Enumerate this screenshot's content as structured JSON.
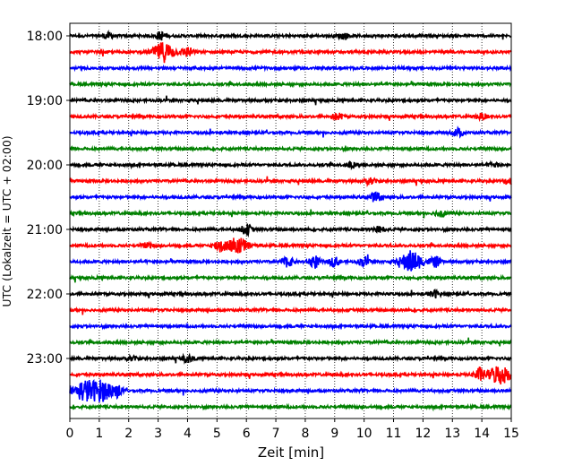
{
  "chart_data": {
    "type": "line",
    "title": "",
    "xlabel": "Zeit  [min]",
    "ylabel": "UTC (Lokalzeit = UTC + 02:00)",
    "xlim": [
      0,
      15
    ],
    "x_ticks": [
      "0",
      "1",
      "2",
      "3",
      "4",
      "5",
      "6",
      "7",
      "8",
      "9",
      "10",
      "11",
      "12",
      "13",
      "14",
      "15"
    ],
    "y_tick_labels": [
      "18:00",
      "19:00",
      "20:00",
      "21:00",
      "22:00",
      "23:00"
    ],
    "grid": "vertical dotted lines at each minute",
    "trace_interval_minutes": 15,
    "color_cycle": [
      "#000000",
      "#ff0000",
      "#0000ff",
      "#008000"
    ],
    "traces": [
      {
        "start": "18:00",
        "events": [
          {
            "t": 1.3,
            "amp": 0.25
          },
          {
            "t": 3.1,
            "amp": 0.35
          },
          {
            "t": 9.3,
            "amp": 0.25
          }
        ]
      },
      {
        "start": "18:15",
        "events": [
          {
            "t": 3.2,
            "amp": 0.9
          },
          {
            "t": 4.0,
            "amp": 0.45
          }
        ]
      },
      {
        "start": "18:30",
        "events": []
      },
      {
        "start": "18:45",
        "events": []
      },
      {
        "start": "19:00",
        "events": []
      },
      {
        "start": "19:15",
        "events": [
          {
            "t": 9.1,
            "amp": 0.3
          },
          {
            "t": 14.0,
            "amp": 0.25
          }
        ]
      },
      {
        "start": "19:30",
        "events": [
          {
            "t": 13.2,
            "amp": 0.35
          }
        ]
      },
      {
        "start": "19:45",
        "events": []
      },
      {
        "start": "20:00",
        "events": [
          {
            "t": 9.6,
            "amp": 0.25
          },
          {
            "t": 14.4,
            "amp": 0.2
          }
        ]
      },
      {
        "start": "20:15",
        "events": [
          {
            "t": 10.2,
            "amp": 0.3
          },
          {
            "t": 14.9,
            "amp": 0.3
          }
        ]
      },
      {
        "start": "20:30",
        "events": [
          {
            "t": 10.4,
            "amp": 0.45
          }
        ]
      },
      {
        "start": "20:45",
        "events": [
          {
            "t": 12.6,
            "amp": 0.3
          }
        ]
      },
      {
        "start": "21:00",
        "events": [
          {
            "t": 6.0,
            "amp": 0.45
          },
          {
            "t": 10.5,
            "amp": 0.25
          }
        ]
      },
      {
        "start": "21:15",
        "events": [
          {
            "t": 5.1,
            "amp": 0.6
          },
          {
            "t": 5.7,
            "amp": 0.75
          },
          {
            "t": 2.6,
            "amp": 0.2
          }
        ]
      },
      {
        "start": "21:30",
        "events": [
          {
            "t": 7.4,
            "amp": 0.45
          },
          {
            "t": 8.3,
            "amp": 0.6
          },
          {
            "t": 9.0,
            "amp": 0.4
          },
          {
            "t": 10.0,
            "amp": 0.4
          },
          {
            "t": 11.6,
            "amp": 1.0
          },
          {
            "t": 12.4,
            "amp": 0.5
          }
        ]
      },
      {
        "start": "21:45",
        "events": []
      },
      {
        "start": "22:00",
        "events": [
          {
            "t": 12.4,
            "amp": 0.3
          }
        ]
      },
      {
        "start": "22:15",
        "events": []
      },
      {
        "start": "22:30",
        "events": []
      },
      {
        "start": "22:45",
        "events": []
      },
      {
        "start": "23:00",
        "events": [
          {
            "t": 4.0,
            "amp": 0.35
          },
          {
            "t": 2.1,
            "amp": 0.2
          }
        ]
      },
      {
        "start": "23:15",
        "events": [
          {
            "t": 13.9,
            "amp": 0.6
          },
          {
            "t": 14.6,
            "amp": 0.9
          }
        ]
      },
      {
        "start": "23:30",
        "events": [
          {
            "t": 0.5,
            "amp": 0.95
          },
          {
            "t": 1.1,
            "amp": 0.9
          },
          {
            "t": 1.6,
            "amp": 0.5
          }
        ]
      },
      {
        "start": "23:45",
        "events": []
      }
    ]
  }
}
